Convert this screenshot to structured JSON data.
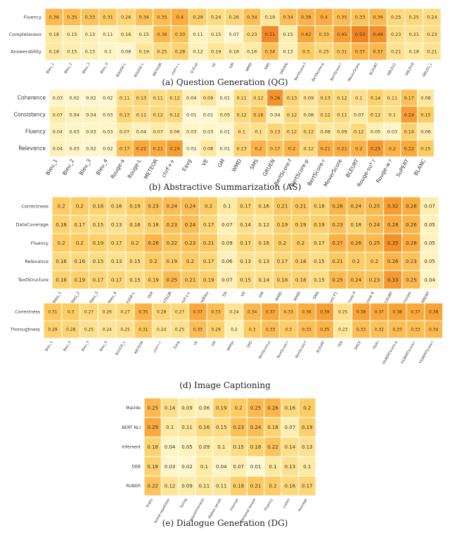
{
  "chart_data": [
    {
      "type": "heatmap",
      "caption": "(a) Question Generation (QG)",
      "rows": [
        "Fluency",
        "Completeness",
        "Answerability"
      ],
      "columns": [
        "Bleu_1",
        "Bleu_2",
        "Bleu_3",
        "Bleu_4",
        "ROUGE-L",
        "ROUGE-L",
        "METEOR",
        "chrF++",
        "Q-Eval",
        "VE",
        "GM",
        "WMD",
        "SMS",
        "GRUEN",
        "BertScore-f",
        "BertScore-p",
        "BertScore-r",
        "MoverScore",
        "BLEURT",
        "QBLEU1",
        "QBLEU4",
        "QBLEU_L"
      ],
      "values": [
        [
          0.36,
          0.35,
          0.33,
          0.31,
          0.26,
          0.34,
          0.35,
          0.4,
          0.29,
          0.24,
          0.26,
          0.34,
          0.19,
          0.34,
          0.38,
          0.4,
          0.35,
          0.33,
          0.36,
          0.25,
          0.25,
          0.24
        ],
        [
          0.18,
          0.15,
          0.13,
          0.11,
          0.16,
          0.15,
          0.36,
          0.33,
          0.11,
          0.15,
          0.07,
          0.23,
          0.51,
          0.15,
          0.42,
          0.33,
          0.45,
          0.53,
          0.49,
          0.23,
          0.21,
          0.23
        ],
        [
          0.18,
          0.15,
          0.13,
          0.1,
          0.08,
          0.19,
          0.25,
          0.28,
          0.12,
          0.19,
          0.16,
          0.16,
          0.34,
          0.13,
          0.3,
          0.25,
          0.31,
          0.37,
          0.37,
          0.21,
          0.18,
          0.21
        ]
      ]
    },
    {
      "type": "heatmap",
      "caption": "(b) Abstractive Summarization (AS)",
      "rows": [
        "Coherence",
        "Consistency",
        "Fluency",
        "Relevance"
      ],
      "columns": [
        "Bleu_1",
        "Bleu_2",
        "Bleu_3",
        "Bleu_4",
        "Rouge-a",
        "Rouge-L",
        "METEOR",
        "chrF++",
        "Eavg",
        "VE",
        "GM",
        "WMD",
        "SMS",
        "GRUEN",
        "BertScore-f",
        "BertScore-p",
        "BertScore-r",
        "MoverScore",
        "BLEURT",
        "Rouge-su* r",
        "Rouge-w r",
        "SuPERT",
        "BLANC"
      ],
      "values": [
        [
          0.03,
          0.02,
          0.02,
          0.02,
          0.11,
          0.13,
          0.11,
          0.12,
          0.04,
          0.09,
          0.01,
          0.11,
          0.12,
          0.26,
          0.13,
          0.09,
          0.13,
          0.12,
          0.1,
          0.14,
          0.11,
          0.17,
          0.08
        ],
        [
          0.07,
          0.04,
          0.04,
          0.03,
          0.13,
          0.11,
          0.12,
          0.12,
          0.01,
          0.01,
          0.05,
          0.12,
          0.16,
          0.04,
          0.12,
          0.08,
          0.12,
          0.11,
          0.07,
          0.12,
          0.1,
          0.24,
          0.15
        ],
        [
          0.04,
          0.03,
          0.03,
          0.03,
          0.07,
          0.04,
          0.07,
          0.06,
          0.03,
          0.03,
          0.01,
          0.1,
          0.1,
          0.13,
          0.12,
          0.12,
          0.08,
          0.09,
          0.12,
          0.05,
          0.03,
          0.14,
          0.06
        ],
        [
          0.04,
          0.03,
          0.02,
          0.02,
          0.17,
          0.22,
          0.21,
          0.24,
          0.01,
          0.08,
          0.01,
          0.13,
          0.2,
          0.17,
          0.2,
          0.12,
          0.21,
          0.21,
          0.2,
          0.25,
          0.2,
          0.22,
          0.15
        ]
      ]
    },
    {
      "type": "heatmap",
      "caption": "(c) Data to Text Generation (D2T)",
      "rows": [
        "Correctness",
        "DataCoverage",
        "Fluency",
        "Relevance",
        "TextStructure"
      ],
      "columns": [
        "Bleu_1",
        "Bleu_2",
        "Bleu_3",
        "Bleu_4",
        "ROUGE-L",
        "TER",
        "METEOR",
        "chrF++",
        "SacreBleu",
        "EA",
        "VE",
        "GM",
        "WMD",
        "WMD",
        "SMS",
        "BERTScore F1",
        "BERTScore P",
        "BERTScore R",
        "BLEURT",
        "Moverscore",
        "PARENT"
      ],
      "values": [
        [
          0.2,
          0.2,
          0.18,
          0.16,
          0.19,
          0.23,
          0.24,
          0.24,
          0.2,
          0.1,
          0.17,
          0.16,
          0.21,
          0.21,
          0.18,
          0.26,
          0.24,
          0.25,
          0.32,
          0.28,
          0.07
        ],
        [
          0.18,
          0.17,
          0.15,
          0.13,
          0.16,
          0.18,
          0.23,
          0.24,
          0.17,
          0.07,
          0.14,
          0.12,
          0.19,
          0.19,
          0.19,
          0.23,
          0.18,
          0.24,
          0.28,
          0.26,
          0.05
        ],
        [
          0.2,
          0.2,
          0.19,
          0.17,
          0.2,
          0.26,
          0.22,
          0.23,
          0.21,
          0.09,
          0.17,
          0.16,
          0.2,
          0.2,
          0.17,
          0.27,
          0.26,
          0.25,
          0.35,
          0.28,
          0.05
        ],
        [
          0.16,
          0.16,
          0.15,
          0.13,
          0.15,
          0.2,
          0.19,
          0.2,
          0.17,
          0.06,
          0.13,
          0.13,
          0.17,
          0.18,
          0.15,
          0.21,
          0.2,
          0.2,
          0.26,
          0.23,
          0.05
        ],
        [
          0.18,
          0.19,
          0.17,
          0.17,
          0.15,
          0.19,
          0.25,
          0.21,
          0.19,
          0.07,
          0.15,
          0.14,
          0.18,
          0.18,
          0.15,
          0.25,
          0.24,
          0.23,
          0.33,
          0.25,
          0.04
        ]
      ]
    },
    {
      "type": "heatmap",
      "caption": "(d) Image Captioning",
      "rows": [
        "Correctness",
        "Thoroughness"
      ],
      "columns": [
        "Bleu_1",
        "Bleu_2",
        "Bleu_3",
        "Bleu_4",
        "ROUGE_L",
        "METEOR",
        "chrF++",
        "Eavg",
        "VE",
        "GM",
        "WMDo",
        "SMS",
        "BertScore-p",
        "BertScore-r",
        "BertScore-f",
        "BLEURT",
        "TER",
        "SPICE",
        "TIGEr",
        "ViLBERTScore-p",
        "ViLBERTScore-r",
        "ViLBERTScore-f"
      ],
      "values": [
        [
          0.31,
          0.3,
          0.27,
          0.26,
          0.27,
          0.35,
          0.28,
          0.27,
          0.37,
          0.33,
          0.24,
          0.34,
          0.37,
          0.33,
          0.36,
          0.39,
          0.25,
          0.38,
          0.37,
          0.38,
          0.37,
          0.38
        ],
        [
          0.29,
          0.28,
          0.25,
          0.24,
          0.25,
          0.31,
          0.24,
          0.25,
          0.33,
          0.29,
          0.2,
          0.3,
          0.33,
          0.3,
          0.33,
          0.35,
          0.23,
          0.33,
          0.32,
          0.33,
          0.33,
          0.34
        ]
      ]
    },
    {
      "type": "heatmap",
      "caption": "(e) Dialogue Generation (DG)",
      "rows": [
        "MaUde",
        "BERT NLI",
        "Infersent",
        "DEB",
        "RUBER"
      ],
      "columns": [
        "Enjoy",
        "Avoid repetition",
        "Turing",
        "Inquisitiveness",
        "Makes sense",
        "Interest",
        "Personal Issues",
        "Fluency",
        "Listen",
        "Average"
      ],
      "values": [
        [
          0.25,
          0.14,
          0.09,
          0.06,
          0.19,
          0.2,
          0.25,
          0.26,
          0.16,
          0.2
        ],
        [
          0.29,
          0.1,
          0.11,
          0.16,
          0.15,
          0.23,
          0.24,
          0.18,
          0.07,
          0.19
        ],
        [
          0.18,
          0.04,
          0.05,
          0.09,
          0.1,
          0.15,
          0.18,
          0.22,
          0.14,
          0.13
        ],
        [
          0.18,
          0.03,
          0.02,
          0.1,
          0.04,
          0.07,
          0.01,
          0.1,
          0.13,
          0.1
        ],
        [
          0.22,
          0.12,
          0.09,
          0.11,
          0.11,
          0.19,
          0.21,
          0.2,
          0.16,
          0.17
        ]
      ]
    }
  ]
}
